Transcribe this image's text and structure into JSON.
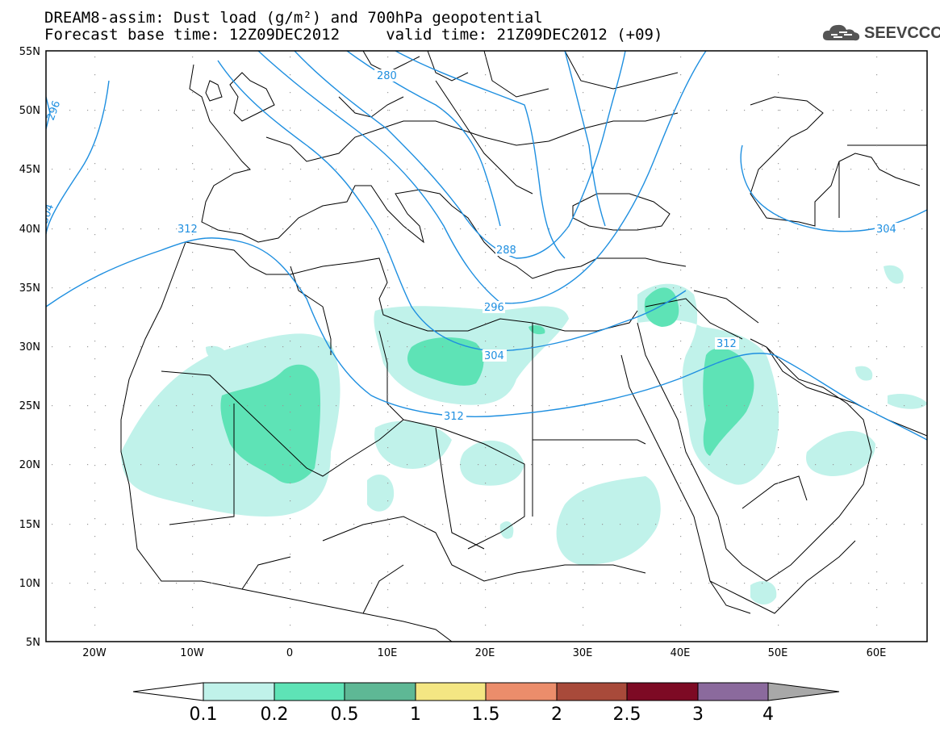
{
  "title": {
    "line1": "DREAM8-assim: Dust load (g/m²) and 700hPa geopotential",
    "line2": "Forecast base time: 12Z09DEC2012     valid time: 21Z09DEC2012 (+09)"
  },
  "logo": {
    "text": "SEEVCCC",
    "icon": "cloud-icon"
  },
  "axes": {
    "lat_labels": [
      "55N",
      "50N",
      "45N",
      "40N",
      "35N",
      "30N",
      "25N",
      "20N",
      "15N",
      "10N",
      "5N"
    ],
    "lon_labels": [
      "20W",
      "10W",
      "0",
      "10E",
      "20E",
      "30E",
      "40E",
      "50E",
      "60E"
    ]
  },
  "contour_labels": [
    "280",
    "288",
    "296",
    "296",
    "304",
    "304",
    "304",
    "312",
    "312",
    "312"
  ],
  "colorbar": {
    "ticks": [
      "0.1",
      "0.2",
      "0.5",
      "1",
      "1.5",
      "2",
      "2.5",
      "3",
      "4"
    ],
    "colors": [
      "#c0f2ea",
      "#5ee3b6",
      "#5eb895",
      "#f4e683",
      "#eb8d6b",
      "#a84a3a",
      "#7d0a24",
      "#8b6a9d"
    ],
    "under_color": "#ffffff",
    "over_color": "#a8a8a8"
  },
  "colors": {
    "contour": "#1e8fe0",
    "border": "#000000"
  }
}
